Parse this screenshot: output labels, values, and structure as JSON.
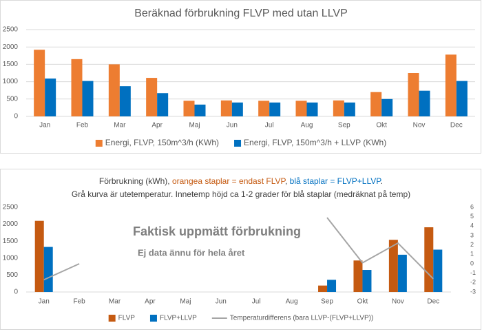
{
  "chart_data": [
    {
      "type": "bar",
      "title": "Beräknad förbrukning FLVP med utan LLVP",
      "categories": [
        "Jan",
        "Feb",
        "Mar",
        "Apr",
        "Maj",
        "Jun",
        "Jul",
        "Aug",
        "Sep",
        "Okt",
        "Nov",
        "Dec"
      ],
      "series": [
        {
          "name": "Energi, FLVP, 150m^3/h (KWh)",
          "color": "#ed7d31",
          "values": [
            1920,
            1650,
            1500,
            1110,
            450,
            460,
            450,
            450,
            460,
            700,
            1250,
            1780
          ]
        },
        {
          "name": "Energi, FLVP, 150m^3/h + LLVP (KWh)",
          "color": "#0070c0",
          "values": [
            1090,
            1020,
            870,
            670,
            340,
            400,
            400,
            400,
            400,
            500,
            740,
            1020
          ]
        }
      ],
      "ylim": [
        0,
        2500
      ],
      "yticks": [
        0,
        500,
        1000,
        1500,
        2000,
        2500
      ],
      "grid": true,
      "legend": "bottom"
    },
    {
      "type": "bar",
      "title_parts": [
        {
          "text": "Förbrukning (kWh), ",
          "color": "#404040"
        },
        {
          "text": "orangea staplar = endast FLVP",
          "color": "#c55a11"
        },
        {
          "text": ", ",
          "color": "#404040"
        },
        {
          "text": "blå staplar = FLVP+LLVP",
          "color": "#0070c0"
        },
        {
          "text": ".",
          "color": "#404040"
        }
      ],
      "subtitle": "Grå kurva är utetemperatur. Innetemp höjd ca 1-2 grader för blå staplar (medräknat på temp)",
      "annotations": [
        "Faktisk uppmätt förbrukning",
        "Ej data ännu för hela året"
      ],
      "categories": [
        "Jan",
        "Feb",
        "Mar",
        "Apr",
        "Maj",
        "Jun",
        "Jul",
        "Aug",
        "Sep",
        "Okt",
        "Nov",
        "Dec"
      ],
      "series": [
        {
          "name": "FLVP",
          "color": "#c55a11",
          "values": [
            2100,
            null,
            null,
            null,
            null,
            null,
            null,
            null,
            190,
            930,
            1540,
            1910
          ]
        },
        {
          "name": "FLVP+LLVP",
          "color": "#0070c0",
          "values": [
            1330,
            null,
            null,
            null,
            null,
            null,
            null,
            null,
            360,
            650,
            1100,
            1250
          ]
        },
        {
          "name": "Temperaturdifferens (bara LLVP-(FLVP+LLVP))",
          "color": "#a5a5a5",
          "type": "line",
          "axis": "y2",
          "values": [
            -1.7,
            0,
            null,
            null,
            null,
            null,
            null,
            null,
            4.9,
            0.1,
            2.2,
            -1.6
          ]
        }
      ],
      "ylim": [
        0,
        2500
      ],
      "yticks": [
        0,
        500,
        1000,
        1500,
        2000,
        2500
      ],
      "y2lim": [
        -3,
        6
      ],
      "y2ticks": [
        -3,
        -2,
        -1,
        0,
        1,
        2,
        3,
        4,
        5,
        6
      ],
      "grid": false,
      "legend": "bottom"
    }
  ]
}
